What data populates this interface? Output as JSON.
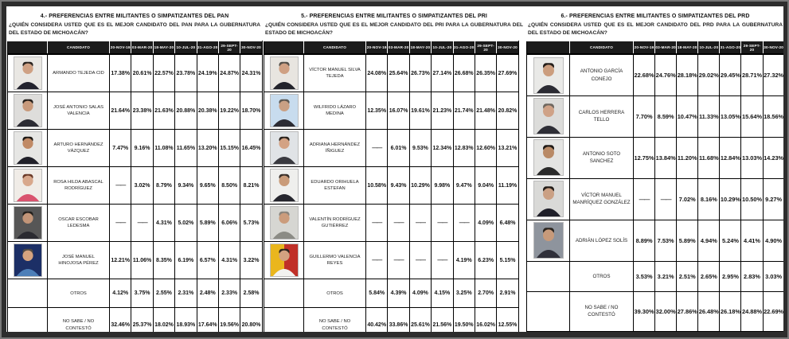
{
  "page": {
    "colors": {
      "outer_border": "#787878",
      "frame_bg": "#2d2d2d",
      "page_bg": "#ffffff",
      "table_header_bg": "#1b1b1b",
      "table_header_text": "#ffffff"
    }
  },
  "columns": {
    "candidate_label": "CANDIDATO",
    "dates": [
      "20-NOV-19",
      "03-MAR-20",
      "18-MAY-20",
      "10-JUL-20",
      "31-AGO-20",
      "29-SEPT-20",
      "30-NOV-20"
    ]
  },
  "tables": [
    {
      "title": "4.- PREFERENCIAS ENTRE MILITANTES O SIMPATIZANTES DEL PAN",
      "question": "¿QUIÉN CONSIDERA USTED QUE ES EL MEJOR CANDIDATO DEL PAN PARA LA GUBERNATURA DEL ESTADO DE MICHOACÁN?",
      "rows": [
        {
          "name": "ARMANDO TEJEDA CID",
          "photo": {
            "bg": "#e9e7e3",
            "suit": "#23232e",
            "skin": "#cfa184",
            "hair": "#2a2420"
          },
          "values": [
            "17.38%",
            "20.61%",
            "22.57%",
            "23.78%",
            "24.19%",
            "24.87%",
            "24.31%"
          ]
        },
        {
          "name": "JOSÉ ANTONIO SALAS VALENCIA",
          "photo": {
            "bg": "#dedddb",
            "suit": "#2c2c34",
            "skin": "#c89a7c",
            "hair": "#26201c"
          },
          "values": [
            "21.64%",
            "23.38%",
            "21.63%",
            "20.88%",
            "20.38%",
            "19.22%",
            "18.70%"
          ]
        },
        {
          "name": "ARTURO HERNÁNDEZ VÁZQUEZ",
          "photo": {
            "bg": "#e6e6e4",
            "suit": "#21212a",
            "skin": "#c08a66",
            "hair": "#1c1814"
          },
          "values": [
            "7.47%",
            "9.16%",
            "11.08%",
            "11.65%",
            "13.20%",
            "15.15%",
            "16.45%"
          ]
        },
        {
          "name": "ROSA HILDA ABASCAL RODRÍGUEZ",
          "photo": {
            "bg": "#f0ece7",
            "suit": "#d9536e",
            "skin": "#d8a88c",
            "hair": "#6b3a28"
          },
          "values": [
            "——",
            "3.02%",
            "8.79%",
            "9.34%",
            "9.65%",
            "8.50%",
            "8.21%"
          ]
        },
        {
          "name": "OSCAR ESCOBAR LEDESMA",
          "photo": {
            "bg": "#565656",
            "suit": "#2b2b31",
            "skin": "#c29578",
            "hair": "#23201c"
          },
          "values": [
            "——",
            "——",
            "4.31%",
            "5.02%",
            "5.89%",
            "6.06%",
            "5.73%"
          ]
        },
        {
          "name": "JOSÉ MANUEL HINOJOSA PÉREZ",
          "photo": {
            "bg": "#1c2f66",
            "suit": "#4d7fb8",
            "skin": "#d5a37f",
            "hair": "#4f4a44"
          },
          "values": [
            "12.21%",
            "11.06%",
            "8.35%",
            "6.19%",
            "6.57%",
            "4.31%",
            "3.22%"
          ]
        },
        {
          "name": "OTROS",
          "photo": null,
          "values": [
            "4.12%",
            "3.75%",
            "2.55%",
            "2.31%",
            "2.48%",
            "2.33%",
            "2.58%"
          ]
        },
        {
          "name": "NO SABE / NO CONTESTÓ",
          "photo": null,
          "values": [
            "32.46%",
            "25.37%",
            "18.02%",
            "18.93%",
            "17.64%",
            "19.56%",
            "20.80%"
          ]
        }
      ]
    },
    {
      "title": "5.- PREFERENCIAS ENTRE MILITANTES O SIMPATIZANTES DEL PRI",
      "question": "¿QUIÉN CONSIDERA USTED QUE ES EL MEJOR CANDIDATO DEL PRI PARA LA GUBERNATURA DEL ESTADO DE MICHOACÁN?",
      "rows": [
        {
          "name": "VÍCTOR MANUEL SILVA TEJEDA",
          "photo": {
            "bg": "#e8e5e0",
            "suit": "#23232b",
            "skin": "#cfa083",
            "hair": "#55504a"
          },
          "values": [
            "24.08%",
            "25.64%",
            "26.73%",
            "27.14%",
            "26.68%",
            "26.35%",
            "27.69%"
          ]
        },
        {
          "name": "WILFRIDO LÁZARO MEDINA",
          "photo": {
            "bg": "#c8dcee",
            "suit": "#2b2b33",
            "skin": "#caa084",
            "hair": "#5d5852"
          },
          "values": [
            "12.35%",
            "16.07%",
            "19.61%",
            "21.23%",
            "21.74%",
            "21.48%",
            "20.82%"
          ]
        },
        {
          "name": "ADRIANA HERNÁNDEZ ÍÑIGUEZ",
          "photo": {
            "bg": "#e0e3e6",
            "suit": "#3a3a40",
            "skin": "#d3a284",
            "hair": "#2a221c"
          },
          "values": [
            "——",
            "6.01%",
            "9.53%",
            "12.34%",
            "12.83%",
            "12.60%",
            "13.21%"
          ]
        },
        {
          "name": "EDUARDO ORIHUELA ESTEFAN",
          "photo": {
            "bg": "#efefed",
            "suit": "#26262e",
            "skin": "#c99b79",
            "hair": "#39302a"
          },
          "values": [
            "10.58%",
            "9.43%",
            "10.29%",
            "9.98%",
            "9.47%",
            "9.04%",
            "11.19%"
          ]
        },
        {
          "name": "VALENTÍN RODRÍGUEZ GUTIÉRREZ",
          "photo": {
            "bg": "#d6d6d2",
            "suit": "#8b8b85",
            "skin": "#cb9c7c",
            "hair": "#8a857d"
          },
          "values": [
            "——",
            "——",
            "——",
            "——",
            "——",
            "4.09%",
            "6.48%"
          ]
        },
        {
          "name": "GUILLERMO VALENCIA REYES",
          "photo": {
            "bg": "#eab61d",
            "bg2": "#c03028",
            "suit": "#f2f2f0",
            "skin": "#d2a180",
            "hair": "#2b241e"
          },
          "values": [
            "——",
            "——",
            "——",
            "——",
            "4.19%",
            "6.23%",
            "5.15%"
          ]
        },
        {
          "name": "OTROS",
          "photo": null,
          "values": [
            "5.84%",
            "4.39%",
            "4.09%",
            "4.15%",
            "3.25%",
            "2.70%",
            "2.91%"
          ]
        },
        {
          "name": "NO SABE / NO CONTESTÓ",
          "photo": null,
          "values": [
            "40.42%",
            "33.86%",
            "25.61%",
            "21.56%",
            "19.50%",
            "16.02%",
            "12.55%"
          ]
        }
      ]
    },
    {
      "title": "6.- PREFERENCIAS ENTRE MILITANTES O SIMPATIZANTES DEL PRD",
      "question": "¿QUIÉN CONSIDERA USTED QUE ES EL MEJOR CANDIDATO DEL PRD PARA LA GUBERNATURA DEL ESTADO DE MICHOACÁN?",
      "rows": [
        {
          "name": "ANTONIO GARCÍA CONEJO",
          "photo": {
            "bg": "#e9e9e7",
            "suit": "#2b2b33",
            "skin": "#cb9d7e",
            "hair": "#241e1a"
          },
          "values": [
            "22.68%",
            "24.76%",
            "28.18%",
            "29.02%",
            "29.45%",
            "28.71%",
            "27.32%"
          ]
        },
        {
          "name": "CARLOS HERRERA TELLO",
          "photo": {
            "bg": "#dcdcda",
            "suit": "#2e2e36",
            "skin": "#cfa287",
            "hair": "#6e675f"
          },
          "values": [
            "7.70%",
            "8.59%",
            "10.47%",
            "11.33%",
            "13.05%",
            "15.64%",
            "18.56%"
          ]
        },
        {
          "name": "ANTONIO SOTO SANCHEZ",
          "photo": {
            "bg": "#e4e4e2",
            "suit": "#2b2b2b",
            "skin": "#b98a66",
            "hair": "#1f1a16"
          },
          "values": [
            "12.75%",
            "13.84%",
            "11.20%",
            "11.68%",
            "12.84%",
            "13.03%",
            "14.23%"
          ]
        },
        {
          "name": "VÍCTOR MANUEL MANRÍQUEZ GONZÁLEZ",
          "photo": {
            "bg": "#d9d9d7",
            "suit": "#20202a",
            "skin": "#caa084",
            "hair": "#221c18"
          },
          "values": [
            "——",
            "——",
            "7.02%",
            "8.16%",
            "10.29%",
            "10.50%",
            "9.27%"
          ]
        },
        {
          "name": "ADRIÁN LÓPEZ SOLÍS",
          "photo": {
            "bg": "#8e949d",
            "suit": "#30303a",
            "skin": "#c79a7a",
            "hair": "#2a241e"
          },
          "values": [
            "8.89%",
            "7.53%",
            "5.89%",
            "4.94%",
            "5.24%",
            "4.41%",
            "4.90%"
          ]
        },
        {
          "name": "OTROS",
          "photo": null,
          "values": [
            "3.53%",
            "3.21%",
            "2.51%",
            "2.65%",
            "2.95%",
            "2.83%",
            "3.03%"
          ]
        },
        {
          "name": "NO SABE / NO CONTESTÓ",
          "photo": null,
          "values": [
            "39.30%",
            "32.00%",
            "27.86%",
            "26.48%",
            "26.18%",
            "24.88%",
            "22.69%"
          ]
        }
      ]
    }
  ]
}
